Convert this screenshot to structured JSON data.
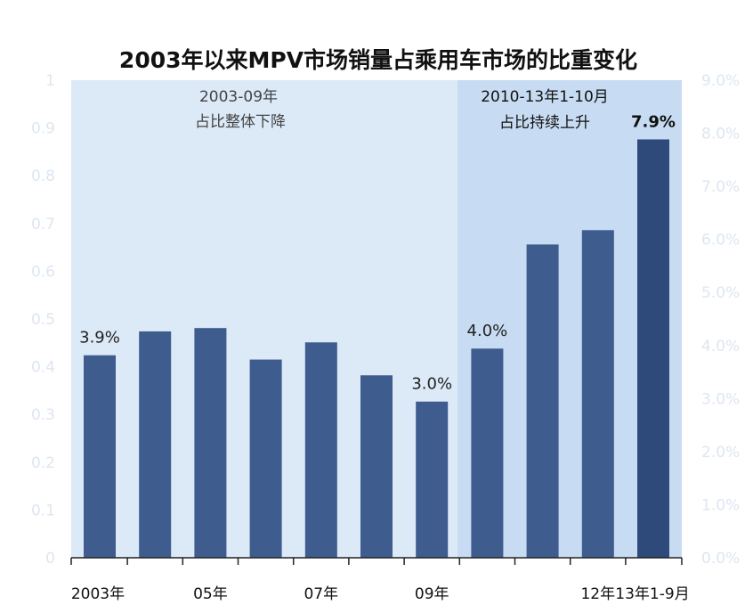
{
  "chart_data": {
    "type": "bar",
    "title": "2003年以来MPV市场销量占乘用车市场的比重变化",
    "bars": [
      0.424,
      0.474,
      0.481,
      0.415,
      0.451,
      0.382,
      0.327,
      0.438,
      0.656,
      0.686,
      0.876
    ],
    "x_tick_labels": [
      "2003年",
      "05年",
      "07年",
      "09年",
      "12年",
      "13年1-9月"
    ],
    "y_left_ticks": [
      "0",
      "0.1",
      "0.2",
      "0.3",
      "0.4",
      "0.5",
      "0.6",
      "0.7",
      "0.8",
      "0.9",
      "1"
    ],
    "y_left_range": [
      0,
      1
    ],
    "y_right_ticks": [
      "0.0%",
      "1.0%",
      "2.0%",
      "3.0%",
      "4.0%",
      "5.0%",
      "6.0%",
      "7.0%",
      "8.0%",
      "9.0%"
    ],
    "data_labels": [
      "3.9%",
      "3.0%",
      "4.0%",
      "7.9%"
    ],
    "annotations": [
      {
        "line1": "2003-09年",
        "line2": "占比整体下降"
      },
      {
        "line1": "2010-13年1-10月",
        "line2": "占比持续上升"
      }
    ],
    "colors": {
      "bar": "#3e5c8e",
      "bar_last": "#2d4a7a",
      "region_left": "#dce9f7",
      "region_right": "#c7dcf2"
    },
    "grid": false
  }
}
